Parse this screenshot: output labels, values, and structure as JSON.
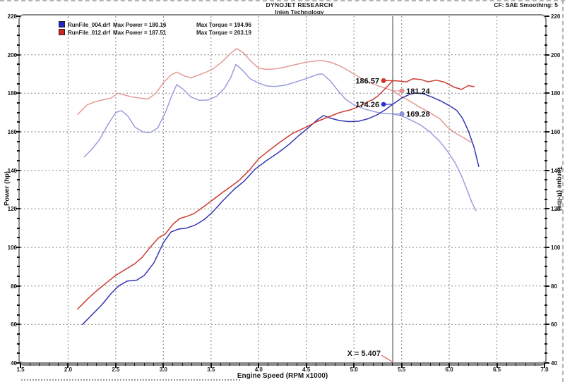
{
  "header": {
    "title": "DYNOJET RESEARCH",
    "subtitle": "Injen Technology",
    "correction": "CF: SAE  Smoothing: 5"
  },
  "legend": {
    "rows": [
      {
        "swatch_color": "#2126c8",
        "file": "RunFile_004.drf",
        "power": "Max Power = 180.16",
        "torque": "Max Torque = 194.96"
      },
      {
        "swatch_color": "#d6251d",
        "file": "RunFile_012.drf",
        "power": "Max Power = 187.51",
        "torque": "Max Torque = 203.19"
      }
    ]
  },
  "axes": {
    "x_label": "Engine Speed (RPM x1000)",
    "y_left_label": "Power (hp)",
    "y_right_label": "Torque (ft-lbs)",
    "x_tick_labels": [
      "1.5",
      "2.0",
      "2.5",
      "3.0",
      "3.5",
      "4.0",
      "4.5",
      "5.0",
      "5.5",
      "6.0",
      "6.5",
      "7.0"
    ],
    "y_tick_labels": [
      "40",
      "60",
      "80",
      "100",
      "120",
      "140",
      "160",
      "180",
      "200",
      "220"
    ]
  },
  "cursor": {
    "x": 5.407,
    "label": "X = 5.407",
    "markers": [
      {
        "label": "186.57",
        "value": 186.57,
        "side": "left",
        "color": "#e03024"
      },
      {
        "label": "181.24",
        "value": 181.24,
        "side": "right",
        "color": "#ef948e"
      },
      {
        "label": "174.26",
        "value": 174.26,
        "side": "left",
        "color": "#2a2ee0"
      },
      {
        "label": "169.28",
        "value": 169.28,
        "side": "right",
        "color": "#8f93ea"
      }
    ]
  },
  "chart_data": {
    "type": "line",
    "title": "DYNOJET RESEARCH - Injen Technology",
    "xlabel": "Engine Speed (RPM x1000)",
    "ylabel_left": "Power (hp)",
    "ylabel_right": "Torque (ft-lbs)",
    "xlim": [
      1.5,
      7.0
    ],
    "ylim": [
      40,
      220
    ],
    "x_major": 0.5,
    "y_major": 20,
    "grid": true,
    "legend_position": "top-left",
    "cursor_x": 5.407,
    "values_at_cursor": {
      "RunFile_012_power_hp": 186.57,
      "RunFile_012_torque_ftlbs": 181.24,
      "RunFile_004_power_hp": 174.26,
      "RunFile_004_torque_ftlbs": 169.28
    },
    "series": [
      {
        "name": "RunFile_004.drf Torque (ft-lbs)",
        "axis": "right",
        "color": "#9a9ddd",
        "points": [
          [
            2.17,
            147
          ],
          [
            2.25,
            151
          ],
          [
            2.33,
            156
          ],
          [
            2.42,
            164
          ],
          [
            2.5,
            170
          ],
          [
            2.56,
            171
          ],
          [
            2.63,
            168
          ],
          [
            2.7,
            162.5
          ],
          [
            2.78,
            160
          ],
          [
            2.86,
            159.5
          ],
          [
            2.94,
            162
          ],
          [
            3.02,
            170
          ],
          [
            3.09,
            179
          ],
          [
            3.14,
            184.5
          ],
          [
            3.21,
            182
          ],
          [
            3.29,
            178
          ],
          [
            3.38,
            176.3
          ],
          [
            3.47,
            176.5
          ],
          [
            3.56,
            178.5
          ],
          [
            3.64,
            182.5
          ],
          [
            3.71,
            188.5
          ],
          [
            3.76,
            194.96
          ],
          [
            3.83,
            192
          ],
          [
            3.91,
            187.5
          ],
          [
            4.0,
            185.3
          ],
          [
            4.08,
            183.8
          ],
          [
            4.17,
            183.5
          ],
          [
            4.28,
            184.2
          ],
          [
            4.4,
            186
          ],
          [
            4.52,
            188
          ],
          [
            4.62,
            189.8
          ],
          [
            4.67,
            190
          ],
          [
            4.75,
            186.5
          ],
          [
            4.83,
            181.5
          ],
          [
            4.91,
            177
          ],
          [
            5.0,
            174
          ],
          [
            5.1,
            172
          ],
          [
            5.2,
            170.6
          ],
          [
            5.3,
            169.6
          ],
          [
            5.407,
            169.28
          ],
          [
            5.5,
            168.3
          ],
          [
            5.6,
            166
          ],
          [
            5.7,
            163.5
          ],
          [
            5.8,
            159.8
          ],
          [
            5.9,
            155
          ],
          [
            5.98,
            150
          ],
          [
            6.06,
            144
          ],
          [
            6.13,
            137
          ],
          [
            6.19,
            129.5
          ],
          [
            6.24,
            123
          ],
          [
            6.28,
            119
          ]
        ]
      },
      {
        "name": "RunFile_012.drf Torque (ft-lbs)",
        "axis": "right",
        "color": "#e59a94",
        "points": [
          [
            2.1,
            169
          ],
          [
            2.2,
            174
          ],
          [
            2.28,
            175.5
          ],
          [
            2.36,
            176.5
          ],
          [
            2.45,
            177.5
          ],
          [
            2.52,
            180
          ],
          [
            2.6,
            179
          ],
          [
            2.68,
            178
          ],
          [
            2.76,
            177.5
          ],
          [
            2.84,
            177
          ],
          [
            2.92,
            180
          ],
          [
            3.0,
            185.5
          ],
          [
            3.08,
            189.5
          ],
          [
            3.14,
            191
          ],
          [
            3.22,
            189
          ],
          [
            3.29,
            188
          ],
          [
            3.37,
            189.5
          ],
          [
            3.45,
            191
          ],
          [
            3.53,
            193
          ],
          [
            3.62,
            196.5
          ],
          [
            3.7,
            200.5
          ],
          [
            3.77,
            203.19
          ],
          [
            3.84,
            201
          ],
          [
            3.92,
            196.5
          ],
          [
            4.0,
            193
          ],
          [
            4.08,
            192.4
          ],
          [
            4.16,
            192.6
          ],
          [
            4.25,
            193.3
          ],
          [
            4.38,
            194.8
          ],
          [
            4.5,
            196.2
          ],
          [
            4.6,
            196.8
          ],
          [
            4.67,
            197
          ],
          [
            4.76,
            196
          ],
          [
            4.86,
            194
          ],
          [
            4.95,
            191.5
          ],
          [
            5.05,
            188.5
          ],
          [
            5.15,
            186
          ],
          [
            5.25,
            184
          ],
          [
            5.33,
            182.6
          ],
          [
            5.407,
            181.24
          ],
          [
            5.5,
            178.3
          ],
          [
            5.6,
            175.5
          ],
          [
            5.7,
            172.5
          ],
          [
            5.8,
            169.8
          ],
          [
            5.9,
            166.8
          ],
          [
            5.98,
            162.5
          ],
          [
            6.05,
            159.8
          ],
          [
            6.12,
            157.8
          ],
          [
            6.18,
            156
          ],
          [
            6.23,
            154.5
          ]
        ]
      },
      {
        "name": "RunFile_004.drf Power (hp)",
        "axis": "left",
        "color": "#3438b4",
        "points": [
          [
            2.15,
            60
          ],
          [
            2.25,
            65
          ],
          [
            2.35,
            70
          ],
          [
            2.45,
            76
          ],
          [
            2.53,
            80
          ],
          [
            2.62,
            82.5
          ],
          [
            2.72,
            83
          ],
          [
            2.8,
            85.5
          ],
          [
            2.9,
            92
          ],
          [
            3.0,
            102.5
          ],
          [
            3.08,
            108
          ],
          [
            3.16,
            109.5
          ],
          [
            3.24,
            110
          ],
          [
            3.33,
            111.5
          ],
          [
            3.43,
            114.5
          ],
          [
            3.52,
            118.5
          ],
          [
            3.62,
            124
          ],
          [
            3.74,
            130
          ],
          [
            3.85,
            134.5
          ],
          [
            3.96,
            140.5
          ],
          [
            4.08,
            145
          ],
          [
            4.2,
            149
          ],
          [
            4.32,
            153.5
          ],
          [
            4.42,
            158
          ],
          [
            4.52,
            162
          ],
          [
            4.61,
            166
          ],
          [
            4.68,
            168.5
          ],
          [
            4.76,
            167
          ],
          [
            4.85,
            165.8
          ],
          [
            4.95,
            165.3
          ],
          [
            5.05,
            165.5
          ],
          [
            5.15,
            166.8
          ],
          [
            5.25,
            169
          ],
          [
            5.33,
            171.5
          ],
          [
            5.407,
            174.26
          ],
          [
            5.5,
            177.5
          ],
          [
            5.58,
            179.3
          ],
          [
            5.65,
            180.16
          ],
          [
            5.73,
            179.7
          ],
          [
            5.82,
            178
          ],
          [
            5.92,
            175.8
          ],
          [
            6.02,
            173
          ],
          [
            6.08,
            171
          ],
          [
            6.14,
            167
          ],
          [
            6.2,
            160.5
          ],
          [
            6.26,
            152
          ],
          [
            6.31,
            142
          ]
        ]
      },
      {
        "name": "RunFile_012.drf Power (hp)",
        "axis": "left",
        "color": "#cc3b30",
        "points": [
          [
            2.1,
            68
          ],
          [
            2.2,
            73
          ],
          [
            2.3,
            77.5
          ],
          [
            2.4,
            81.5
          ],
          [
            2.5,
            85.5
          ],
          [
            2.6,
            88.5
          ],
          [
            2.7,
            91.5
          ],
          [
            2.78,
            95
          ],
          [
            2.86,
            100
          ],
          [
            2.95,
            105
          ],
          [
            3.02,
            107
          ],
          [
            3.1,
            112
          ],
          [
            3.17,
            115
          ],
          [
            3.24,
            116
          ],
          [
            3.32,
            117.5
          ],
          [
            3.42,
            121
          ],
          [
            3.5,
            124
          ],
          [
            3.62,
            128.5
          ],
          [
            3.72,
            132
          ],
          [
            3.8,
            135
          ],
          [
            3.9,
            140
          ],
          [
            4.0,
            146
          ],
          [
            4.1,
            150
          ],
          [
            4.22,
            154.5
          ],
          [
            4.35,
            159
          ],
          [
            4.5,
            162.5
          ],
          [
            4.62,
            165.5
          ],
          [
            4.72,
            167.5
          ],
          [
            4.85,
            170
          ],
          [
            4.97,
            171.5
          ],
          [
            5.07,
            173.5
          ],
          [
            5.14,
            175.5
          ],
          [
            5.19,
            176.5
          ],
          [
            5.25,
            178.5
          ],
          [
            5.32,
            182
          ],
          [
            5.407,
            186.57
          ],
          [
            5.48,
            186.3
          ],
          [
            5.55,
            185.9
          ],
          [
            5.62,
            187.51
          ],
          [
            5.7,
            187.2
          ],
          [
            5.78,
            185.9
          ],
          [
            5.86,
            186.8
          ],
          [
            5.95,
            185.8
          ],
          [
            6.05,
            183.2
          ],
          [
            6.13,
            182
          ],
          [
            6.2,
            184
          ],
          [
            6.26,
            183.4
          ]
        ]
      }
    ]
  },
  "style": {
    "grid_color": "#979797",
    "cursor_color": "#5a5a5a",
    "leader_color": "#cc3b30"
  }
}
